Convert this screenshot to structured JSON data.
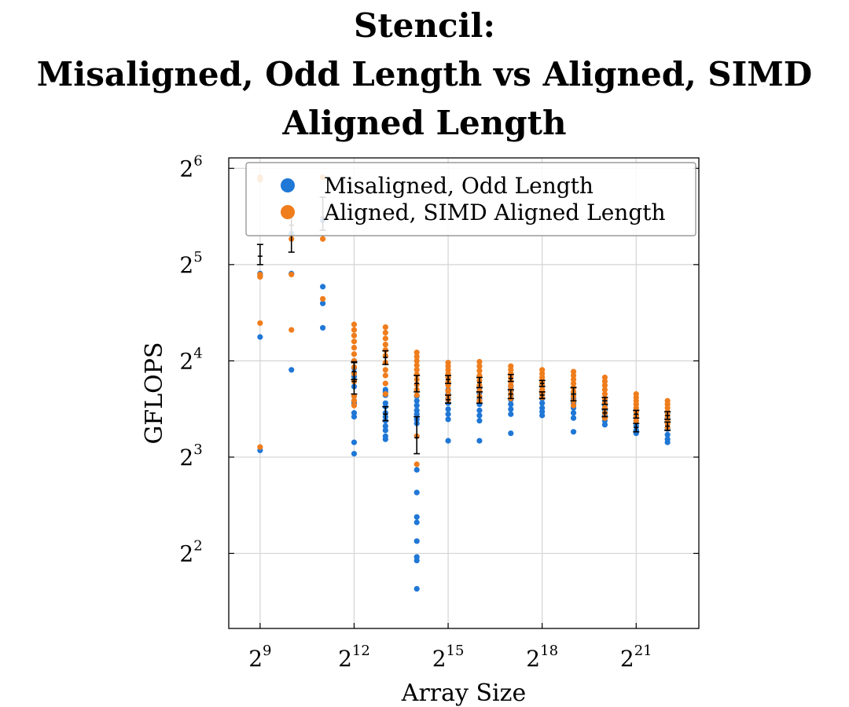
{
  "chart_data": {
    "type": "scatter",
    "title_lines": [
      "Stencil:",
      "Misaligned, Odd Length vs Aligned, SIMD",
      "Aligned Length"
    ],
    "xlabel": "Array Size",
    "ylabel": "GFLOPS",
    "x_scale": "log2",
    "y_scale": "log2",
    "xlim": [
      256,
      8388608
    ],
    "ylim": [
      2.33,
      69
    ],
    "x_ticks": [
      {
        "value": 512,
        "base": "2",
        "exp": "9"
      },
      {
        "value": 4096,
        "base": "2",
        "exp": "12"
      },
      {
        "value": 32768,
        "base": "2",
        "exp": "15"
      },
      {
        "value": 262144,
        "base": "2",
        "exp": "18"
      },
      {
        "value": 2097152,
        "base": "2",
        "exp": "21"
      }
    ],
    "y_ticks": [
      {
        "value": 4,
        "base": "2",
        "exp": "2"
      },
      {
        "value": 8,
        "base": "2",
        "exp": "3"
      },
      {
        "value": 16,
        "base": "2",
        "exp": "4"
      },
      {
        "value": 32,
        "base": "2",
        "exp": "5"
      },
      {
        "value": 64,
        "base": "2",
        "exp": "6"
      }
    ],
    "grid": true,
    "legend_position": "top-right",
    "series": [
      {
        "name": "Misaligned, Odd Length",
        "color": "#1f77d6",
        "points": [
          [
            512,
            60.0
          ],
          [
            512,
            30.0
          ],
          [
            512,
            29.5
          ],
          [
            512,
            19.0
          ],
          [
            512,
            8.4
          ],
          [
            1024,
            30.0
          ],
          [
            1024,
            15.0
          ],
          [
            1024,
            40.0
          ],
          [
            2048,
            27.3
          ],
          [
            2048,
            24.2
          ],
          [
            2048,
            20.3
          ],
          [
            2048,
            44.0
          ],
          [
            2048,
            60.0
          ],
          [
            4096,
            16.0
          ],
          [
            4096,
            15.2
          ],
          [
            4096,
            14.7
          ],
          [
            4096,
            14.3
          ],
          [
            4096,
            13.9
          ],
          [
            4096,
            13.3
          ],
          [
            4096,
            12.0
          ],
          [
            4096,
            11.8
          ],
          [
            4096,
            11.0
          ],
          [
            4096,
            10.7
          ],
          [
            4096,
            8.9
          ],
          [
            4096,
            8.2
          ],
          [
            8192,
            13.0
          ],
          [
            8192,
            12.8
          ],
          [
            8192,
            12.5
          ],
          [
            8192,
            11.8
          ],
          [
            8192,
            11.5
          ],
          [
            8192,
            11.0
          ],
          [
            8192,
            10.7
          ],
          [
            8192,
            10.4
          ],
          [
            8192,
            10.0
          ],
          [
            8192,
            9.7
          ],
          [
            8192,
            9.3
          ],
          [
            8192,
            9.1
          ],
          [
            16384,
            12.4
          ],
          [
            16384,
            12.0
          ],
          [
            16384,
            11.6
          ],
          [
            16384,
            11.2
          ],
          [
            16384,
            10.9
          ],
          [
            16384,
            10.5
          ],
          [
            16384,
            10.2
          ],
          [
            16384,
            7.3
          ],
          [
            16384,
            6.2
          ],
          [
            16384,
            5.2
          ],
          [
            16384,
            5.0
          ],
          [
            16384,
            4.37
          ],
          [
            16384,
            3.9
          ],
          [
            16384,
            3.8
          ],
          [
            16384,
            3.1
          ],
          [
            32768,
            13.0
          ],
          [
            32768,
            12.6
          ],
          [
            32768,
            12.2
          ],
          [
            32768,
            11.8
          ],
          [
            32768,
            11.3
          ],
          [
            32768,
            10.9
          ],
          [
            32768,
            10.5
          ],
          [
            32768,
            9.0
          ],
          [
            65536,
            13.2
          ],
          [
            65536,
            12.7
          ],
          [
            65536,
            12.2
          ],
          [
            65536,
            11.7
          ],
          [
            65536,
            11.2
          ],
          [
            65536,
            10.8
          ],
          [
            65536,
            10.4
          ],
          [
            65536,
            9.0
          ],
          [
            131072,
            13.3
          ],
          [
            131072,
            12.9
          ],
          [
            131072,
            12.5
          ],
          [
            131072,
            12.1
          ],
          [
            131072,
            11.7
          ],
          [
            131072,
            11.3
          ],
          [
            131072,
            10.9
          ],
          [
            131072,
            9.5
          ],
          [
            262144,
            13.0
          ],
          [
            262144,
            12.6
          ],
          [
            262144,
            12.2
          ],
          [
            262144,
            11.8
          ],
          [
            262144,
            11.4
          ],
          [
            262144,
            11.1
          ],
          [
            262144,
            10.8
          ],
          [
            524288,
            12.6
          ],
          [
            524288,
            12.2
          ],
          [
            524288,
            11.8
          ],
          [
            524288,
            11.4
          ],
          [
            524288,
            11.0
          ],
          [
            524288,
            10.6
          ],
          [
            524288,
            9.6
          ],
          [
            1048576,
            12.0
          ],
          [
            1048576,
            11.6
          ],
          [
            1048576,
            11.2
          ],
          [
            1048576,
            10.8
          ],
          [
            1048576,
            10.4
          ],
          [
            1048576,
            10.1
          ],
          [
            2097152,
            11.2
          ],
          [
            2097152,
            10.8
          ],
          [
            2097152,
            10.4
          ],
          [
            2097152,
            10.0
          ],
          [
            2097152,
            9.7
          ],
          [
            2097152,
            9.5
          ],
          [
            4194304,
            11.0
          ],
          [
            4194304,
            10.6
          ],
          [
            4194304,
            10.2
          ],
          [
            4194304,
            9.8
          ],
          [
            4194304,
            9.4
          ],
          [
            4194304,
            9.1
          ],
          [
            4194304,
            8.9
          ]
        ]
      },
      {
        "name": "Aligned, SIMD Aligned Length",
        "color": "#ef7d1c",
        "points": [
          [
            512,
            60.0
          ],
          [
            512,
            59.0
          ],
          [
            512,
            29.8
          ],
          [
            512,
            29.3
          ],
          [
            512,
            21.0
          ],
          [
            512,
            8.6
          ],
          [
            1024,
            38.5
          ],
          [
            1024,
            29.8
          ],
          [
            1024,
            20.0
          ],
          [
            2048,
            60.0
          ],
          [
            2048,
            38.5
          ],
          [
            2048,
            25.0
          ],
          [
            4096,
            20.8
          ],
          [
            4096,
            20.0
          ],
          [
            4096,
            19.2
          ],
          [
            4096,
            18.4
          ],
          [
            4096,
            17.6
          ],
          [
            4096,
            16.8
          ],
          [
            4096,
            16.0
          ],
          [
            4096,
            15.3
          ],
          [
            4096,
            14.6
          ],
          [
            4096,
            13.8
          ],
          [
            4096,
            12.4
          ],
          [
            4096,
            12.0
          ],
          [
            4096,
            11.6
          ],
          [
            8192,
            20.4
          ],
          [
            8192,
            19.6
          ],
          [
            8192,
            18.8
          ],
          [
            8192,
            18.0
          ],
          [
            8192,
            17.3
          ],
          [
            8192,
            16.6
          ],
          [
            8192,
            15.8
          ],
          [
            8192,
            15.0
          ],
          [
            8192,
            14.4
          ],
          [
            8192,
            13.6
          ],
          [
            8192,
            12.6
          ],
          [
            16384,
            17.0
          ],
          [
            16384,
            16.5
          ],
          [
            16384,
            16.0
          ],
          [
            16384,
            15.5
          ],
          [
            16384,
            15.0
          ],
          [
            16384,
            14.5
          ],
          [
            16384,
            14.0
          ],
          [
            16384,
            13.5
          ],
          [
            16384,
            13.0
          ],
          [
            16384,
            12.5
          ],
          [
            16384,
            9.3
          ],
          [
            16384,
            7.6
          ],
          [
            32768,
            15.8
          ],
          [
            32768,
            15.4
          ],
          [
            32768,
            15.0
          ],
          [
            32768,
            14.6
          ],
          [
            32768,
            14.2
          ],
          [
            32768,
            13.8
          ],
          [
            32768,
            13.4
          ],
          [
            32768,
            12.9
          ],
          [
            32768,
            12.5
          ],
          [
            32768,
            12.1
          ],
          [
            65536,
            15.9
          ],
          [
            65536,
            15.4
          ],
          [
            65536,
            14.9
          ],
          [
            65536,
            14.4
          ],
          [
            65536,
            13.9
          ],
          [
            65536,
            13.4
          ],
          [
            65536,
            12.9
          ],
          [
            65536,
            12.4
          ],
          [
            65536,
            12.0
          ],
          [
            131072,
            15.4
          ],
          [
            131072,
            15.0
          ],
          [
            131072,
            14.6
          ],
          [
            131072,
            14.2
          ],
          [
            131072,
            13.8
          ],
          [
            131072,
            13.4
          ],
          [
            131072,
            13.0
          ],
          [
            131072,
            12.6
          ],
          [
            131072,
            12.2
          ],
          [
            262144,
            15.0
          ],
          [
            262144,
            14.6
          ],
          [
            262144,
            14.2
          ],
          [
            262144,
            13.8
          ],
          [
            262144,
            13.4
          ],
          [
            262144,
            13.0
          ],
          [
            262144,
            12.7
          ],
          [
            262144,
            12.3
          ],
          [
            524288,
            14.8
          ],
          [
            524288,
            14.4
          ],
          [
            524288,
            14.0
          ],
          [
            524288,
            13.6
          ],
          [
            524288,
            13.2
          ],
          [
            524288,
            12.8
          ],
          [
            524288,
            12.4
          ],
          [
            524288,
            12.0
          ],
          [
            524288,
            11.6
          ],
          [
            1048576,
            14.2
          ],
          [
            1048576,
            13.8
          ],
          [
            1048576,
            13.4
          ],
          [
            1048576,
            13.0
          ],
          [
            1048576,
            12.6
          ],
          [
            1048576,
            12.2
          ],
          [
            1048576,
            11.8
          ],
          [
            1048576,
            11.4
          ],
          [
            1048576,
            11.0
          ],
          [
            1048576,
            10.6
          ],
          [
            2097152,
            12.6
          ],
          [
            2097152,
            12.3
          ],
          [
            2097152,
            12.0
          ],
          [
            2097152,
            11.7
          ],
          [
            2097152,
            11.4
          ],
          [
            2097152,
            11.1
          ],
          [
            2097152,
            10.8
          ],
          [
            2097152,
            10.4
          ],
          [
            4194304,
            12.0
          ],
          [
            4194304,
            11.7
          ],
          [
            4194304,
            11.4
          ],
          [
            4194304,
            11.1
          ],
          [
            4194304,
            10.8
          ],
          [
            4194304,
            10.5
          ],
          [
            4194304,
            10.2
          ],
          [
            4194304,
            9.9
          ]
        ]
      }
    ],
    "error_bars": [
      {
        "x": 512,
        "mean": 34.0,
        "low": 32.0,
        "high": 37.0
      },
      {
        "x": 1024,
        "mean": 42.5,
        "low": 35.0,
        "high": 46.0
      },
      {
        "x": 2048,
        "mean": 45.0,
        "low": 41.0,
        "high": 52.0
      },
      {
        "x": 4096,
        "mean": 13.8,
        "low": 12.6,
        "high": 15.9
      },
      {
        "x": 4096,
        "mean": 14.8,
        "low": 14.0,
        "high": 15.8
      },
      {
        "x": 8192,
        "mean": 16.4,
        "low": 15.6,
        "high": 17.2
      },
      {
        "x": 8192,
        "mean": 10.9,
        "low": 10.4,
        "high": 11.5
      },
      {
        "x": 16384,
        "mean": 13.6,
        "low": 12.8,
        "high": 14.4
      },
      {
        "x": 16384,
        "mean": 9.2,
        "low": 8.2,
        "high": 10.7
      },
      {
        "x": 32768,
        "mean": 14.0,
        "low": 13.6,
        "high": 14.4
      },
      {
        "x": 32768,
        "mean": 12.1,
        "low": 11.8,
        "high": 12.5
      },
      {
        "x": 65536,
        "mean": 13.7,
        "low": 13.2,
        "high": 14.2
      },
      {
        "x": 65536,
        "mean": 12.3,
        "low": 11.8,
        "high": 12.8
      },
      {
        "x": 131072,
        "mean": 14.1,
        "low": 13.8,
        "high": 14.5
      },
      {
        "x": 131072,
        "mean": 12.6,
        "low": 12.2,
        "high": 13.0
      },
      {
        "x": 262144,
        "mean": 13.6,
        "low": 13.3,
        "high": 13.9
      },
      {
        "x": 262144,
        "mean": 12.5,
        "low": 12.2,
        "high": 12.8
      },
      {
        "x": 524288,
        "mean": 12.6,
        "low": 12.0,
        "high": 13.2
      },
      {
        "x": 1048576,
        "mean": 12.0,
        "low": 11.7,
        "high": 12.3
      },
      {
        "x": 1048576,
        "mean": 11.0,
        "low": 10.7,
        "high": 11.3
      },
      {
        "x": 2097152,
        "mean": 10.9,
        "low": 10.6,
        "high": 11.2
      },
      {
        "x": 2097152,
        "mean": 9.9,
        "low": 9.6,
        "high": 10.2
      },
      {
        "x": 4194304,
        "mean": 10.8,
        "low": 10.5,
        "high": 11.1
      },
      {
        "x": 4194304,
        "mean": 10.0,
        "low": 9.7,
        "high": 10.3
      }
    ]
  }
}
